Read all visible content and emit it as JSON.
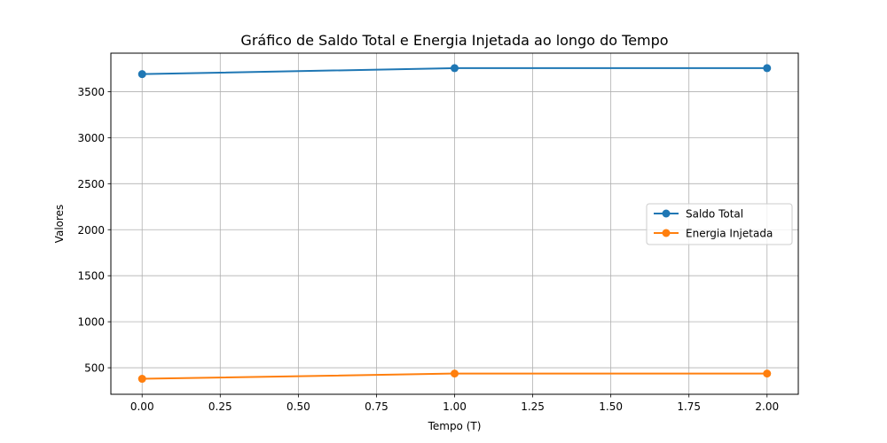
{
  "chart_data": {
    "type": "line",
    "title": "Gráfico de Saldo Total e Energia Injetada ao longo do Tempo",
    "xlabel": "Tempo (T)",
    "ylabel": "Valores",
    "x": [
      0,
      1,
      2
    ],
    "series": [
      {
        "name": "Saldo Total",
        "values": [
          3690,
          3755,
          3755
        ],
        "color": "#1f77b4"
      },
      {
        "name": "Energia Injetada",
        "values": [
          380,
          437,
          437
        ],
        "color": "#ff7f0e"
      }
    ],
    "xlim": [
      -0.1,
      2.1
    ],
    "ylim": [
      212,
      3918
    ],
    "xticks": [
      0,
      0.25,
      0.5,
      0.75,
      1,
      1.25,
      1.5,
      1.75,
      2
    ],
    "xtick_labels": [
      "0.00",
      "0.25",
      "0.50",
      "0.75",
      "1.00",
      "1.25",
      "1.50",
      "1.75",
      "2.00"
    ],
    "yticks": [
      500,
      1000,
      1500,
      2000,
      2500,
      3000,
      3500
    ],
    "ytick_labels": [
      "500",
      "1000",
      "1500",
      "2000",
      "2500",
      "3000",
      "3500"
    ],
    "grid": true,
    "legend_position": "center-right"
  }
}
